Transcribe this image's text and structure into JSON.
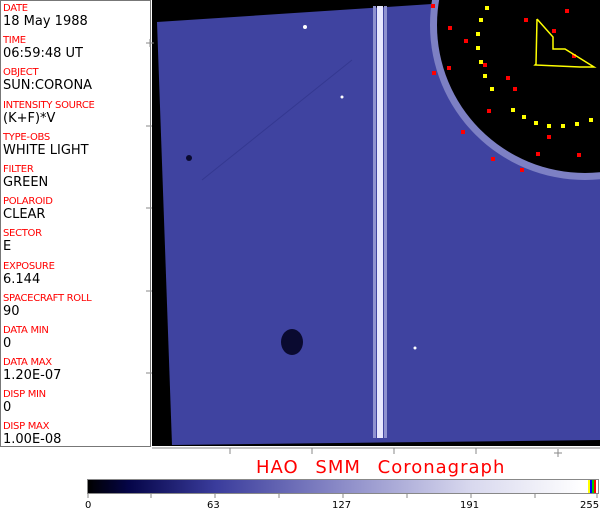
{
  "info_panel": [
    {
      "label": "DATE",
      "value": "18 May 1988"
    },
    {
      "label": "TIME",
      "value": "06:59:48 UT"
    },
    {
      "label": "OBJECT",
      "value": "SUN:CORONA"
    },
    {
      "label": "INTENSITY SOURCE",
      "value": "(K+F)*V"
    },
    {
      "label": "TYPE-OBS",
      "value": "WHITE LIGHT"
    },
    {
      "label": "FILTER",
      "value": "GREEN"
    },
    {
      "label": "POLAROID",
      "value": "CLEAR"
    },
    {
      "label": "SECTOR",
      "value": "E"
    },
    {
      "label": "EXPOSURE",
      "value": "6.144"
    },
    {
      "label": "SPACECRAFT ROLL",
      "value": "90"
    },
    {
      "label": "DATA MIN",
      "value": "0"
    },
    {
      "label": "DATA MAX",
      "value": "1.20E-07"
    },
    {
      "label": "DISP MIN",
      "value": "0"
    },
    {
      "label": "DISP MAX",
      "value": "1.00E-08"
    }
  ],
  "title": "HAO  SMM  Coronagraph",
  "colorbar": {
    "ticks": [
      "0",
      "63",
      "127",
      "191",
      "255"
    ],
    "colors": {
      "low": "#000000",
      "mid": "#8c8cc8",
      "high": "#ffffff",
      "label": "#ff0000"
    }
  }
}
